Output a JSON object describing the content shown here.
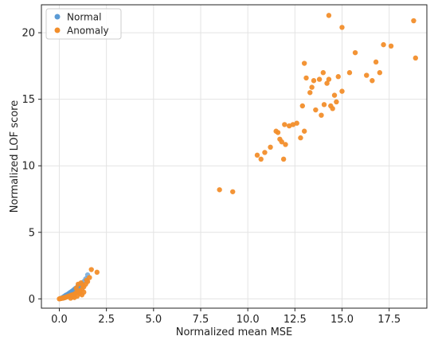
{
  "chart_data": {
    "type": "scatter",
    "xlabel": "Normalized mean MSE",
    "ylabel": "Normalized LOF score",
    "xlim": [
      -0.95,
      19.5
    ],
    "ylim": [
      -0.7,
      22.1
    ],
    "xticks": [
      0.0,
      2.5,
      5.0,
      7.5,
      10.0,
      12.5,
      15.0,
      17.5
    ],
    "xtick_labels": [
      "0.0",
      "2.5",
      "5.0",
      "7.5",
      "10.0",
      "12.5",
      "15.0",
      "17.5"
    ],
    "yticks": [
      0,
      5,
      10,
      15,
      20
    ],
    "ytick_labels": [
      "0",
      "5",
      "10",
      "15",
      "20"
    ],
    "grid": true,
    "legend_position": "top-left",
    "series": [
      {
        "name": "Normal",
        "color": "#5b9bd5",
        "points": [
          [
            0.05,
            0.02
          ],
          [
            0.1,
            0.05
          ],
          [
            0.15,
            0.08
          ],
          [
            0.2,
            0.12
          ],
          [
            0.25,
            0.18
          ],
          [
            0.3,
            0.22
          ],
          [
            0.35,
            0.28
          ],
          [
            0.4,
            0.3
          ],
          [
            0.45,
            0.35
          ],
          [
            0.5,
            0.4
          ],
          [
            0.55,
            0.45
          ],
          [
            0.6,
            0.5
          ],
          [
            0.65,
            0.55
          ],
          [
            0.7,
            0.6
          ],
          [
            0.75,
            0.65
          ],
          [
            0.8,
            0.72
          ],
          [
            0.85,
            0.78
          ],
          [
            0.9,
            0.82
          ],
          [
            0.95,
            0.88
          ],
          [
            1.0,
            0.95
          ],
          [
            1.05,
            1.0
          ],
          [
            1.1,
            1.05
          ],
          [
            1.2,
            1.15
          ],
          [
            1.3,
            1.3
          ],
          [
            1.4,
            1.5
          ],
          [
            1.5,
            1.8
          ],
          [
            0.3,
            0.1
          ],
          [
            0.4,
            0.2
          ],
          [
            0.5,
            0.3
          ],
          [
            0.6,
            0.35
          ],
          [
            0.7,
            0.45
          ],
          [
            0.8,
            0.55
          ],
          [
            0.2,
            0.05
          ],
          [
            0.35,
            0.15
          ],
          [
            0.55,
            0.25
          ],
          [
            0.65,
            0.4
          ],
          [
            0.9,
            0.6
          ],
          [
            1.0,
            0.7
          ],
          [
            1.15,
            0.9
          ],
          [
            0.45,
            0.25
          ],
          [
            0.75,
            0.5
          ],
          [
            0.85,
            0.65
          ]
        ]
      },
      {
        "name": "Anomaly",
        "color": "#f28e2b",
        "points": [
          [
            0.0,
            0.0
          ],
          [
            0.05,
            0.02
          ],
          [
            0.1,
            0.03
          ],
          [
            0.15,
            0.05
          ],
          [
            0.2,
            0.06
          ],
          [
            0.25,
            0.08
          ],
          [
            0.3,
            0.1
          ],
          [
            0.35,
            0.12
          ],
          [
            0.4,
            0.15
          ],
          [
            0.45,
            0.18
          ],
          [
            0.5,
            0.2
          ],
          [
            0.55,
            0.22
          ],
          [
            0.6,
            0.25
          ],
          [
            0.65,
            0.28
          ],
          [
            0.7,
            0.3
          ],
          [
            0.75,
            0.32
          ],
          [
            0.8,
            0.35
          ],
          [
            0.85,
            0.4
          ],
          [
            0.9,
            0.45
          ],
          [
            1.0,
            0.5
          ],
          [
            1.1,
            0.6
          ],
          [
            1.2,
            0.7
          ],
          [
            1.3,
            0.9
          ],
          [
            1.4,
            1.1
          ],
          [
            1.5,
            1.3
          ],
          [
            1.6,
            1.6
          ],
          [
            1.7,
            2.2
          ],
          [
            2.0,
            2.0
          ],
          [
            1.0,
            1.1
          ],
          [
            0.9,
            0.8
          ],
          [
            1.1,
            0.4
          ],
          [
            1.2,
            0.3
          ],
          [
            1.3,
            0.5
          ],
          [
            0.8,
            0.1
          ],
          [
            0.6,
            0.05
          ],
          [
            0.95,
            0.2
          ],
          [
            1.15,
            1.2
          ],
          [
            1.25,
            1.0
          ],
          [
            1.45,
            1.4
          ],
          [
            0.7,
            0.15
          ],
          [
            8.5,
            8.2
          ],
          [
            9.2,
            8.05
          ],
          [
            10.5,
            10.8
          ],
          [
            10.7,
            10.5
          ],
          [
            10.9,
            11.0
          ],
          [
            11.2,
            11.4
          ],
          [
            11.5,
            12.6
          ],
          [
            11.6,
            12.5
          ],
          [
            11.7,
            12.0
          ],
          [
            11.8,
            11.8
          ],
          [
            11.9,
            10.5
          ],
          [
            11.95,
            13.1
          ],
          [
            12.0,
            11.6
          ],
          [
            12.2,
            13.0
          ],
          [
            12.4,
            13.1
          ],
          [
            12.6,
            13.2
          ],
          [
            12.8,
            12.1
          ],
          [
            12.9,
            14.5
          ],
          [
            13.0,
            12.6
          ],
          [
            13.0,
            17.7
          ],
          [
            13.1,
            16.6
          ],
          [
            13.3,
            15.5
          ],
          [
            13.4,
            15.9
          ],
          [
            13.5,
            16.4
          ],
          [
            13.6,
            14.2
          ],
          [
            13.8,
            16.5
          ],
          [
            13.9,
            13.8
          ],
          [
            14.0,
            17.0
          ],
          [
            14.05,
            14.6
          ],
          [
            14.2,
            16.2
          ],
          [
            14.3,
            16.5
          ],
          [
            14.3,
            21.3
          ],
          [
            14.4,
            14.5
          ],
          [
            14.5,
            14.3
          ],
          [
            14.6,
            15.3
          ],
          [
            14.8,
            16.7
          ],
          [
            14.7,
            14.8
          ],
          [
            15.0,
            20.4
          ],
          [
            15.0,
            15.6
          ],
          [
            15.4,
            17.0
          ],
          [
            15.7,
            18.5
          ],
          [
            16.3,
            16.8
          ],
          [
            16.6,
            16.4
          ],
          [
            16.8,
            17.8
          ],
          [
            17.0,
            17.0
          ],
          [
            17.2,
            19.1
          ],
          [
            17.6,
            19.0
          ],
          [
            18.8,
            20.9
          ],
          [
            18.9,
            18.1
          ]
        ]
      }
    ]
  }
}
